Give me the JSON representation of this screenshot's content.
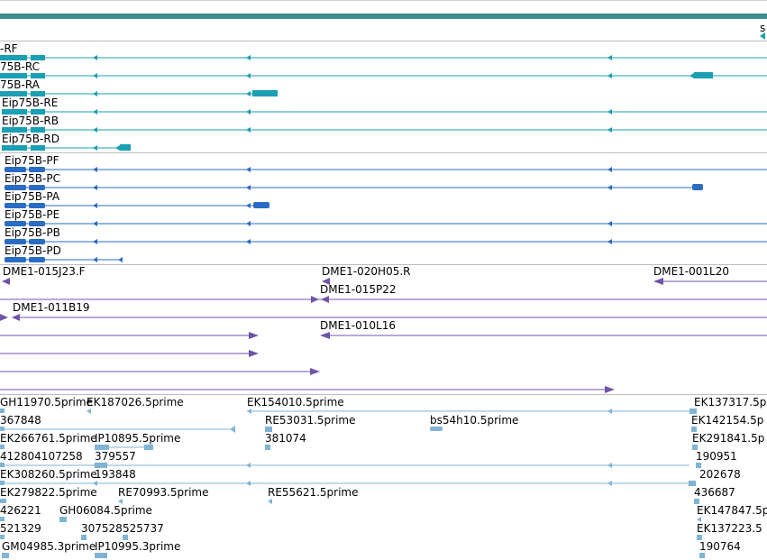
{
  "colors": {
    "scale_bar": "#3d8e8e",
    "transcript_rna": "#1a9fb3",
    "protein": "#2a6bc4",
    "clone": "#7054a8",
    "est": "#7fb4d4",
    "divider": "#bdbdbd"
  },
  "scale": {
    "label": "s"
  },
  "tracks": {
    "rna": [
      "-RF",
      "75B-RC",
      "75B-RA",
      "Eip75B-RE",
      "Eip75B-RB",
      "Eip75B-RD"
    ],
    "protein": [
      "Eip75B-PF",
      "Eip75B-PC",
      "Eip75B-PA",
      "Eip75B-PE",
      "Eip75B-PB",
      "Eip75B-PD"
    ],
    "clones": [
      "DME1-015J23.F",
      "DME1-020H05.R",
      "DME1-001L20",
      "DME1-015P22",
      "DME1-011B19",
      "DME1-010L16"
    ],
    "est": [
      "GH11970.5prime",
      "EK187026.5prime",
      "EK154010.5prime",
      "EK137317.5p",
      "367848",
      "RE53031.5prime",
      "bs54h10.5prime",
      "EK142154.5p",
      "EK266761.5prime",
      "IP10895.5prime",
      "381074",
      "EK291841.5p",
      "412804107258",
      "379557",
      "190951",
      "EK308260.5prime",
      "193848",
      "202678",
      "EK279822.5prime",
      "RE70993.5prime",
      "RE55621.5prime",
      "436687",
      "426221",
      "GH06084.5prime",
      "EK147847.5p",
      "521329",
      "307528",
      "525737",
      "EK137223.5",
      "GM04985.3prime",
      "IP10995.3prime",
      "190764"
    ]
  }
}
